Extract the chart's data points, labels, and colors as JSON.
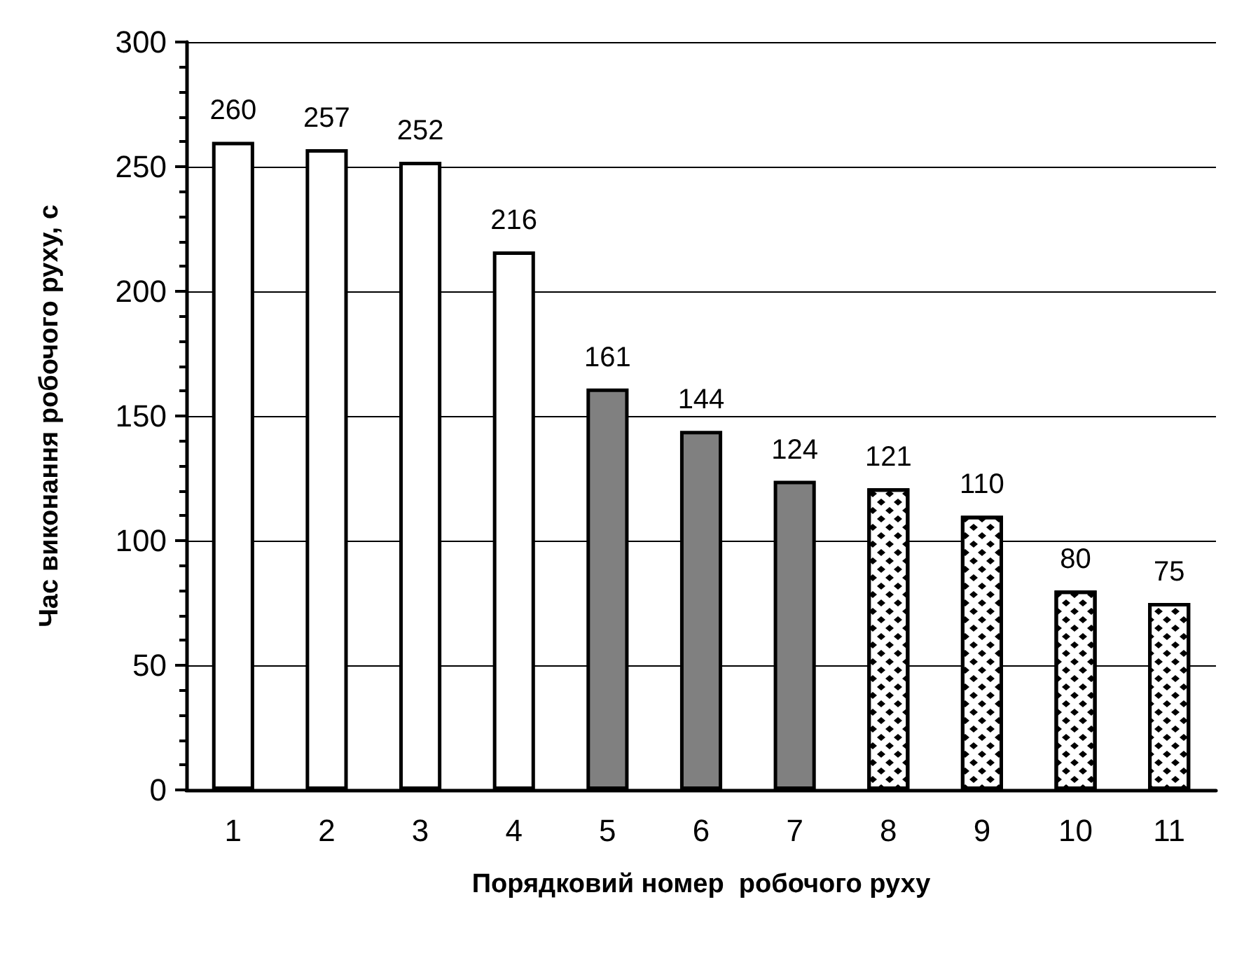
{
  "chart_data": {
    "type": "bar",
    "xlabel": "Порядковий номер  робочого руху",
    "ylabel": "Час виконання робочого руху, с",
    "categories": [
      "1",
      "2",
      "3",
      "4",
      "5",
      "6",
      "7",
      "8",
      "9",
      "10",
      "11"
    ],
    "values": [
      260,
      257,
      252,
      216,
      161,
      144,
      124,
      121,
      110,
      80,
      75
    ],
    "colors": [
      "#ffffff",
      "#ffffff",
      "#ffffff",
      "#ffffff",
      "#808080",
      "#808080",
      "#808080",
      "#000000",
      "#000000",
      "#000000",
      "#000000"
    ],
    "ylim": [
      0,
      300
    ],
    "yticks": [
      0,
      50,
      100,
      150,
      200,
      250,
      300
    ],
    "grid": "y",
    "data_labels": true
  }
}
